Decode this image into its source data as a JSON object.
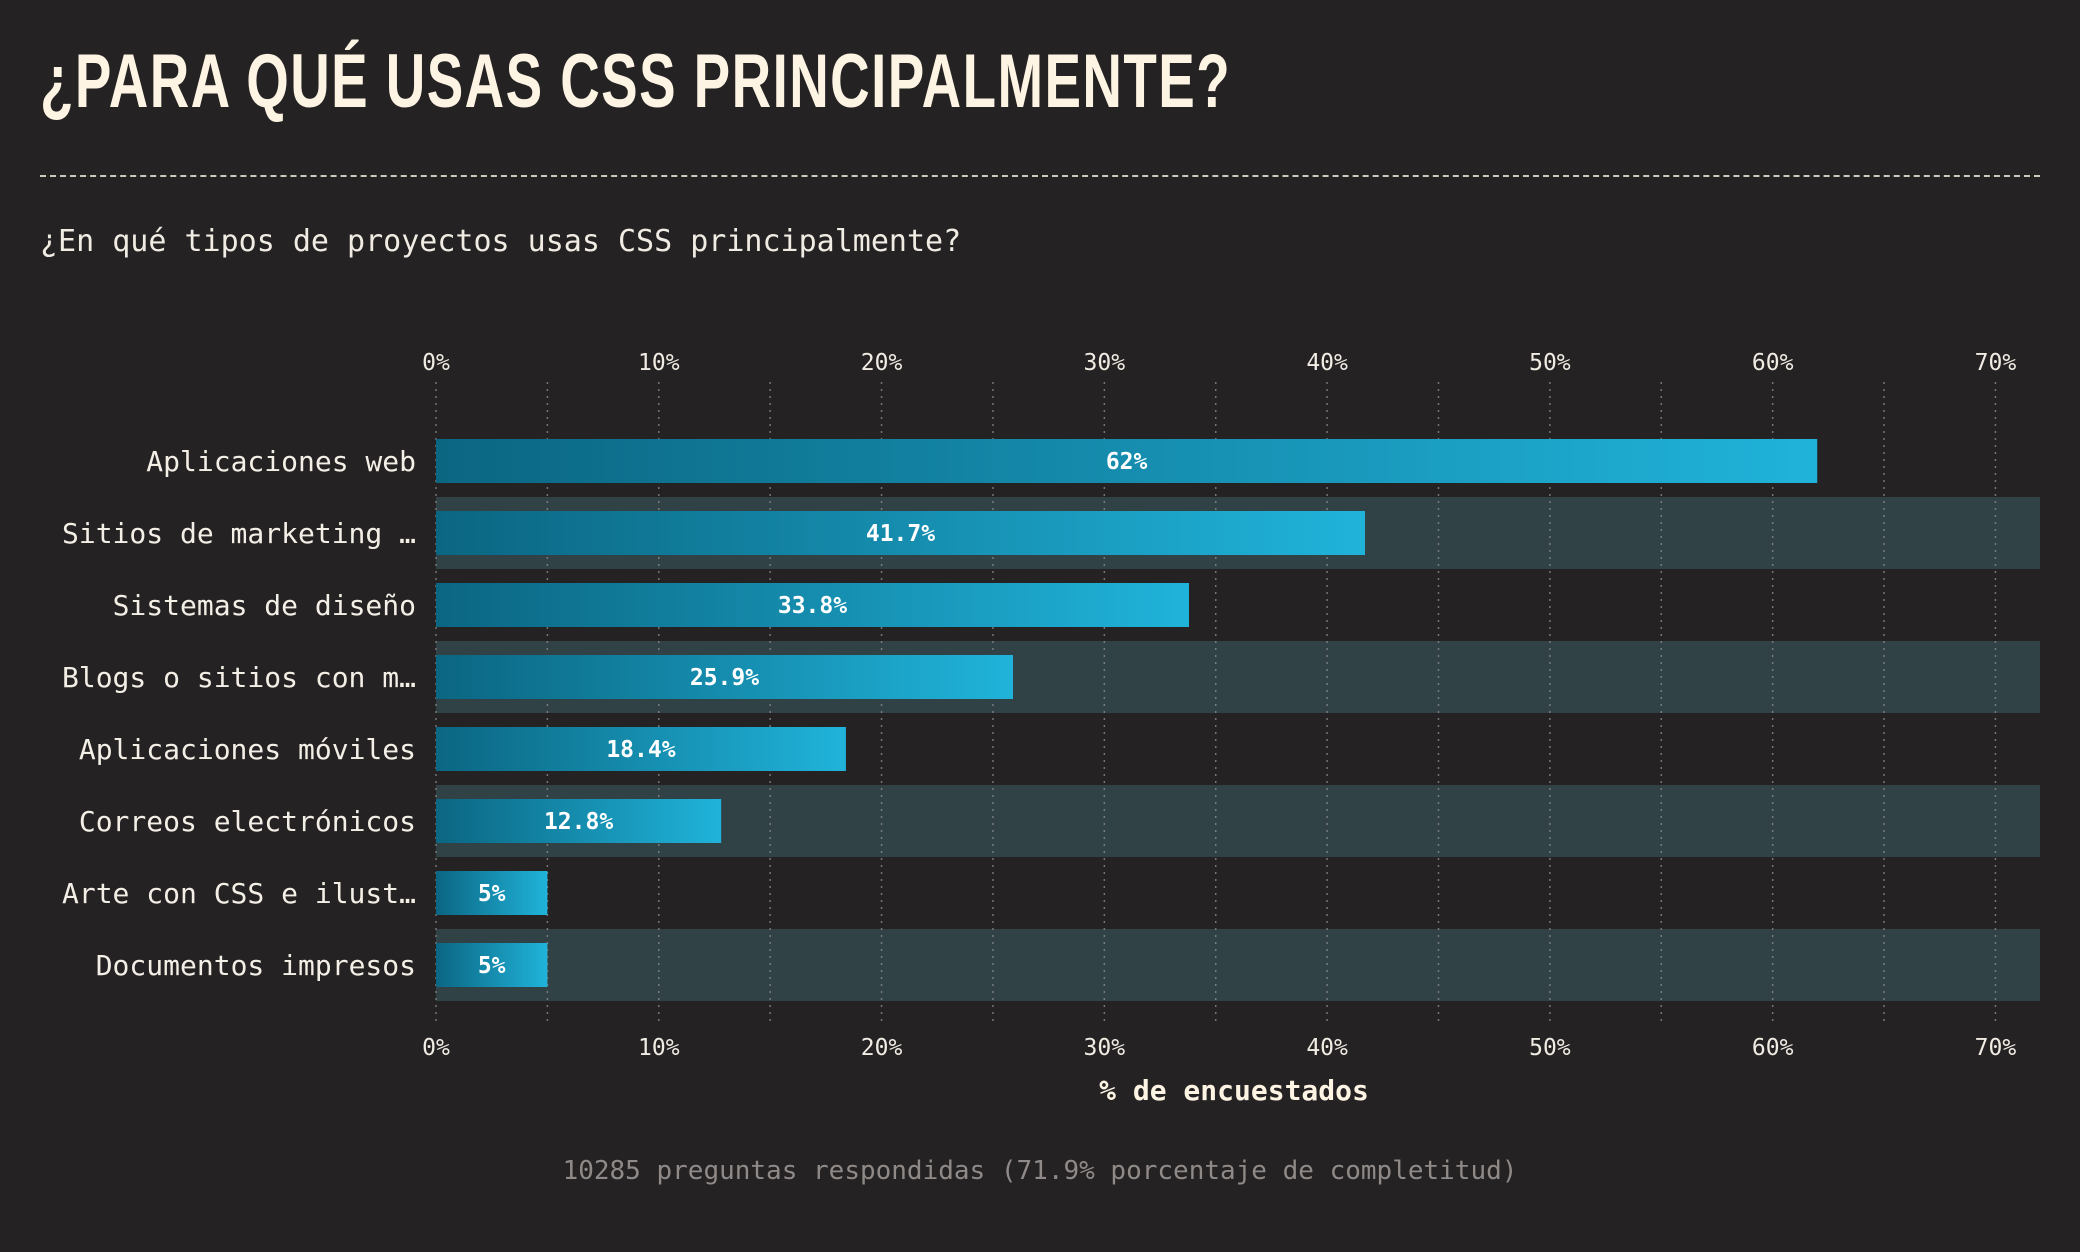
{
  "header": {
    "title": "¿PARA QUÉ USAS CSS PRINCIPALMENTE?",
    "question": "¿En qué tipos de proyectos usas CSS principalmente?"
  },
  "footer": {
    "note": "10285 preguntas respondidas (71.9% porcentaje de completitud)"
  },
  "colors": {
    "background": "#252224",
    "band": "#304245",
    "bar_dark": "#0b6682",
    "bar_light": "#20b3da",
    "grid": "#8a8a8a"
  },
  "chart_data": {
    "type": "bar",
    "orientation": "horizontal",
    "categories": [
      "Aplicaciones web",
      "Sitios de marketing …",
      "Sistemas de diseño",
      "Blogs o sitios con m…",
      "Aplicaciones móviles",
      "Correos electrónicos",
      "Arte con CSS e ilust…",
      "Documentos impresos"
    ],
    "values": [
      62,
      41.7,
      33.8,
      25.9,
      18.4,
      12.8,
      5,
      5
    ],
    "value_labels": [
      "62%",
      "41.7%",
      "33.8%",
      "25.9%",
      "18.4%",
      "12.8%",
      "5%",
      "5%"
    ],
    "xlabel": "% de encuestados",
    "xlim": [
      0,
      72
    ],
    "ticks": [
      0,
      10,
      20,
      30,
      40,
      50,
      60,
      70
    ],
    "tick_labels": [
      "0%",
      "10%",
      "20%",
      "30%",
      "40%",
      "50%",
      "60%",
      "70%"
    ],
    "minor_grid": [
      5,
      15,
      25,
      35,
      45,
      55,
      65
    ],
    "grid": true,
    "alternating_bands": true
  }
}
